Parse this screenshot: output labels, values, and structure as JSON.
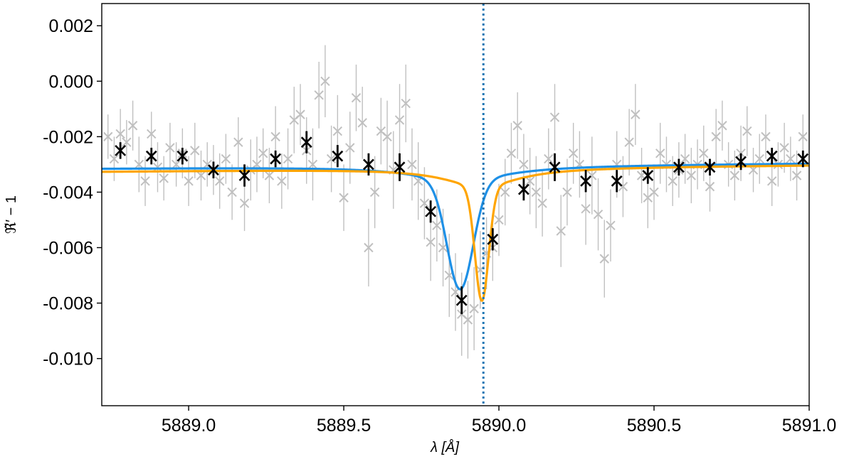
{
  "chart_data": {
    "type": "scatter",
    "title": "",
    "xlabel": "λ [Å]",
    "ylabel": "ℜ̃′ − 1",
    "xlim": [
      5888.72,
      5891.0
    ],
    "ylim": [
      -0.0117,
      0.0028
    ],
    "xticks": [
      5889.0,
      5889.5,
      5890.0,
      5890.5,
      5891.0
    ],
    "xtick_labels": [
      "5889.0",
      "5889.5",
      "5890.0",
      "5890.5",
      "5891.0"
    ],
    "yticks": [
      0.002,
      0.0,
      -0.002,
      -0.004,
      -0.006,
      -0.008,
      -0.01
    ],
    "ytick_labels": [
      "0.002",
      "0.000",
      "-0.002",
      "-0.004",
      "-0.006",
      "-0.008",
      "-0.010"
    ],
    "grid": false,
    "legend": "none",
    "vline": {
      "x": 5889.95,
      "color": "#1f77b4",
      "style": "dotted"
    },
    "series": [
      {
        "kind": "scatter-errorbar",
        "color": "#c0c0c0",
        "x": [
          5888.74,
          5888.76,
          5888.78,
          5888.8,
          5888.82,
          5888.84,
          5888.86,
          5888.88,
          5888.9,
          5888.92,
          5888.94,
          5888.96,
          5888.98,
          5889.0,
          5889.02,
          5889.04,
          5889.06,
          5889.08,
          5889.1,
          5889.12,
          5889.14,
          5889.16,
          5889.18,
          5889.2,
          5889.22,
          5889.24,
          5889.26,
          5889.28,
          5889.3,
          5889.32,
          5889.34,
          5889.36,
          5889.38,
          5889.4,
          5889.42,
          5889.44,
          5889.46,
          5889.48,
          5889.5,
          5889.52,
          5889.54,
          5889.56,
          5889.58,
          5889.6,
          5889.62,
          5889.64,
          5889.66,
          5889.68,
          5889.7,
          5889.72,
          5889.74,
          5889.76,
          5889.78,
          5889.8,
          5889.82,
          5889.84,
          5889.86,
          5889.88,
          5889.9,
          5889.92,
          5889.94,
          5889.96,
          5889.98,
          5890.0,
          5890.02,
          5890.04,
          5890.06,
          5890.08,
          5890.1,
          5890.12,
          5890.14,
          5890.16,
          5890.18,
          5890.2,
          5890.22,
          5890.24,
          5890.26,
          5890.28,
          5890.3,
          5890.32,
          5890.34,
          5890.36,
          5890.38,
          5890.4,
          5890.42,
          5890.44,
          5890.46,
          5890.48,
          5890.5,
          5890.52,
          5890.54,
          5890.56,
          5890.58,
          5890.6,
          5890.62,
          5890.64,
          5890.66,
          5890.68,
          5890.7,
          5890.72,
          5890.74,
          5890.76,
          5890.78,
          5890.8,
          5890.82,
          5890.84,
          5890.86,
          5890.88,
          5890.9,
          5890.92,
          5890.94,
          5890.96,
          5890.98
        ],
        "y": [
          -0.002,
          -0.0028,
          -0.0019,
          -0.0022,
          -0.0016,
          -0.003,
          -0.0036,
          -0.0019,
          -0.0031,
          -0.0035,
          -0.0024,
          -0.003,
          -0.0026,
          -0.0036,
          -0.0025,
          -0.0034,
          -0.003,
          -0.0032,
          -0.0036,
          -0.0028,
          -0.004,
          -0.0022,
          -0.0044,
          -0.0032,
          -0.003,
          -0.0026,
          -0.0034,
          -0.002,
          -0.0036,
          -0.0028,
          -0.0014,
          -0.0012,
          -0.0025,
          -0.003,
          -0.0005,
          0.0,
          -0.0028,
          -0.0018,
          -0.0042,
          -0.0024,
          -0.0006,
          -0.0015,
          -0.006,
          -0.004,
          -0.0018,
          -0.002,
          -0.0032,
          -0.0014,
          -0.0008,
          -0.003,
          -0.0036,
          -0.0044,
          -0.0058,
          -0.0052,
          -0.006,
          -0.007,
          -0.0076,
          -0.0084,
          -0.0086,
          -0.0082,
          -0.0068,
          -0.0062,
          -0.006,
          -0.005,
          -0.004,
          -0.0026,
          -0.0016,
          -0.003,
          -0.0036,
          -0.004,
          -0.0044,
          -0.0028,
          -0.0013,
          -0.0054,
          -0.004,
          -0.0026,
          -0.003,
          -0.0046,
          -0.0034,
          -0.0048,
          -0.0064,
          -0.0052,
          -0.003,
          -0.0038,
          -0.0022,
          -0.0012,
          -0.0034,
          -0.0042,
          -0.004,
          -0.0026,
          -0.003,
          -0.0036,
          -0.0032,
          -0.0028,
          -0.0034,
          -0.003,
          -0.0026,
          -0.0038,
          -0.002,
          -0.0016,
          -0.003,
          -0.0034,
          -0.0026,
          -0.0018,
          -0.0032,
          -0.0028,
          -0.002,
          -0.0036,
          -0.003,
          -0.0024,
          -0.0028,
          -0.0034,
          -0.002
        ],
        "err": [
          0.0008,
          0.0008,
          0.0009,
          0.0008,
          0.0009,
          0.001,
          0.0009,
          0.0008,
          0.0009,
          0.0008,
          0.0009,
          0.0008,
          0.0009,
          0.0009,
          0.001,
          0.0009,
          0.0008,
          0.0009,
          0.001,
          0.0009,
          0.001,
          0.0009,
          0.001,
          0.0011,
          0.001,
          0.0009,
          0.001,
          0.0011,
          0.001,
          0.0011,
          0.0012,
          0.0011,
          0.0012,
          0.0013,
          0.0012,
          0.0013,
          0.0012,
          0.0013,
          0.0012,
          0.0013,
          0.0012,
          0.0013,
          0.0014,
          0.0013,
          0.0012,
          0.0013,
          0.0014,
          0.0013,
          0.0014,
          0.0013,
          0.0014,
          0.0013,
          0.0014,
          0.0013,
          0.0014,
          0.0015,
          0.0014,
          0.0015,
          0.0014,
          0.0015,
          0.0014,
          0.0013,
          0.0012,
          0.0013,
          0.0012,
          0.0011,
          0.0012,
          0.0011,
          0.0012,
          0.0013,
          0.0012,
          0.0011,
          0.0012,
          0.0013,
          0.0012,
          0.0011,
          0.0012,
          0.0013,
          0.0014,
          0.0013,
          0.0014,
          0.0013,
          0.0012,
          0.0011,
          0.0012,
          0.0011,
          0.001,
          0.0011,
          0.001,
          0.0011,
          0.001,
          0.0009,
          0.001,
          0.0009,
          0.001,
          0.0009,
          0.001,
          0.0009,
          0.001,
          0.0009,
          0.0008,
          0.0009,
          0.001,
          0.0009,
          0.0008,
          0.0009,
          0.0008,
          0.0009,
          0.0008,
          0.0009,
          0.0008,
          0.0009,
          0.0008
        ]
      },
      {
        "kind": "scatter-errorbar",
        "color": "#000000",
        "x": [
          5888.78,
          5888.88,
          5888.98,
          5889.08,
          5889.18,
          5889.28,
          5889.38,
          5889.48,
          5889.58,
          5889.68,
          5889.78,
          5889.88,
          5889.98,
          5890.08,
          5890.18,
          5890.28,
          5890.38,
          5890.48,
          5890.58,
          5890.68,
          5890.78,
          5890.88,
          5890.98
        ],
        "y": [
          -0.0025,
          -0.0027,
          -0.0027,
          -0.0032,
          -0.0034,
          -0.0028,
          -0.0022,
          -0.0027,
          -0.003,
          -0.0031,
          -0.0047,
          -0.0079,
          -0.0057,
          -0.0039,
          -0.0031,
          -0.0036,
          -0.0036,
          -0.0034,
          -0.0031,
          -0.0031,
          -0.0029,
          -0.0027,
          -0.0028
        ],
        "err": [
          0.0003,
          0.0003,
          0.0003,
          0.0003,
          0.0004,
          0.0003,
          0.0004,
          0.0004,
          0.0004,
          0.0005,
          0.0004,
          0.0005,
          0.0004,
          0.0004,
          0.0005,
          0.0004,
          0.0004,
          0.0003,
          0.0003,
          0.0003,
          0.0003,
          0.0003,
          0.0003
        ]
      },
      {
        "kind": "line",
        "color": "#1e90e6",
        "model": {
          "baseline": -0.00305,
          "slope": 8e-05,
          "depth": 0.0039,
          "center": 5889.875,
          "sigma": 0.042,
          "lorentz_amp": 0.00055,
          "lorentz_gamma": 0.18
        }
      },
      {
        "kind": "line",
        "color": "#ffa500",
        "model": {
          "baseline": -0.00314,
          "slope": 0.0001,
          "depth": 0.0041,
          "center": 5889.945,
          "sigma": 0.022,
          "lorentz_amp": 0.00068,
          "lorentz_gamma": 0.14
        }
      }
    ]
  }
}
